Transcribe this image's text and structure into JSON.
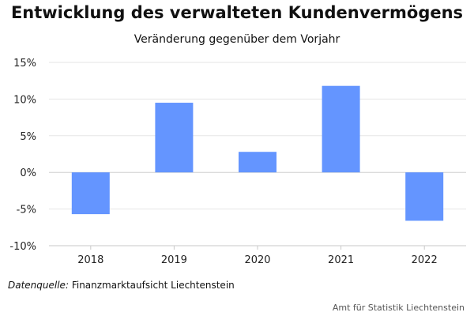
{
  "chart_data": {
    "type": "bar",
    "title": "Entwicklung des verwalteten Kundenvermögens",
    "subtitle": "Veränderung gegenüber dem Vorjahr",
    "categories": [
      "2018",
      "2019",
      "2020",
      "2021",
      "2022"
    ],
    "values": [
      -5.7,
      9.5,
      2.8,
      11.8,
      -6.6
    ],
    "ylim": [
      -10,
      15
    ],
    "yticks": [
      15,
      10,
      5,
      0,
      -5,
      -10
    ],
    "ytick_labels": [
      "15%",
      "10%",
      "5%",
      "0%",
      "-5%",
      "-10%"
    ],
    "xlabel": "",
    "ylabel": "",
    "grid": true,
    "bar_color": "#6495ff"
  },
  "footer": {
    "source_label": "Datenquelle:",
    "source_text": "Finanzmarktaufsicht Liechtenstein",
    "credit": "Amt für Statistik Liechtenstein"
  }
}
